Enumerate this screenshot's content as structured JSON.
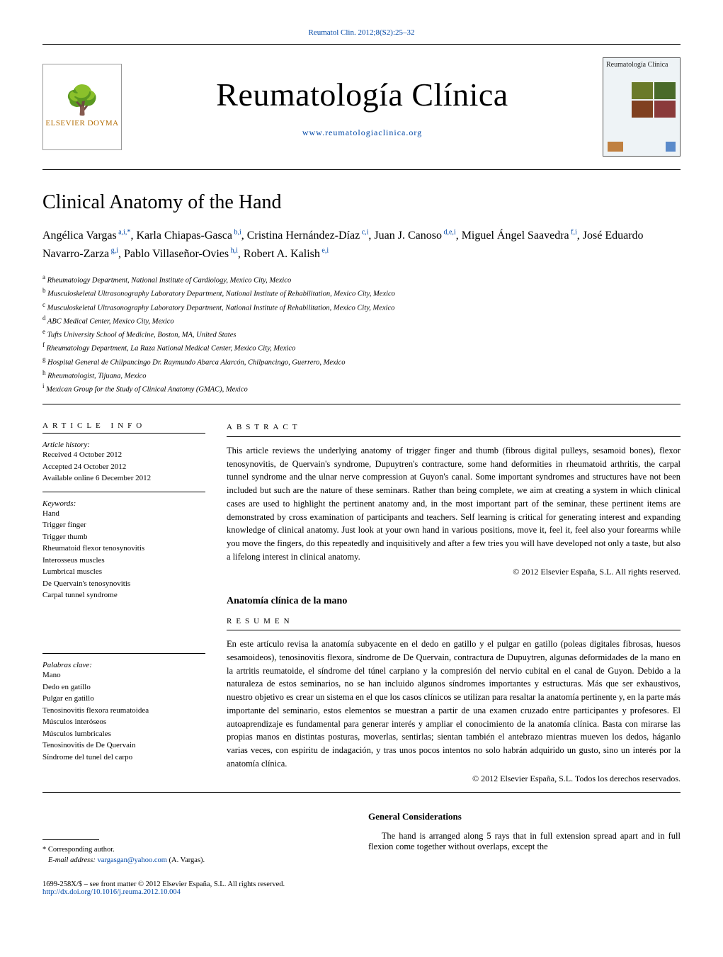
{
  "citation": "Reumatol Clin. 2012;8(S2):25–32",
  "publisher_logo": {
    "name": "ELSEVIER DOYMA"
  },
  "journal": {
    "name_main": "Reumatología",
    "name_sub": " Clínica",
    "url": "www.reumatologiaclinica.org",
    "cover_label": "Reumatología Clínica"
  },
  "article": {
    "title": "Clinical Anatomy of the Hand",
    "authors_html": "Angélica Vargas<sup> a,i,*</sup>,  Karla Chiapas-Gasca<sup> b,i</sup>,  Cristina Hernández-Díaz<sup> c,i</sup>,  Juan J. Canoso<sup> d,e,i</sup>, Miguel Ángel Saavedra<sup> f,i</sup>,  José Eduardo Navarro-Zarza<sup> g,i</sup>,  Pablo Villaseñor-Ovies<sup> h,i</sup>, Robert A. Kalish<sup> e,i</sup>",
    "affiliations": [
      {
        "sup": "a",
        "text": "Rheumatology Department, National Institute of Cardiology, Mexico City, Mexico"
      },
      {
        "sup": "b",
        "text": "Musculoskeletal Ultrasonography Laboratory Department, National Institute of Rehabilitation, Mexico City, Mexico"
      },
      {
        "sup": "c",
        "text": "Musculoskeletal Ultrasonography Laboratory Department, National Institute of Rehabilitation, Mexico City, Mexico"
      },
      {
        "sup": "d",
        "text": "ABC Medical Center, Mexico City, Mexico"
      },
      {
        "sup": "e",
        "text": "Tufts University School of Medicine, Boston, MA, United States"
      },
      {
        "sup": "f",
        "text": "Rheumatology Department, La Raza National Medical Center, Mexico City, Mexico"
      },
      {
        "sup": "g",
        "text": "Hospital General de Chilpancingo Dr. Raymundo Abarca Alarcón, Chilpancingo, Guerrero, Mexico"
      },
      {
        "sup": "h",
        "text": "Rheumatologist, Tijuana, Mexico"
      },
      {
        "sup": "i",
        "text": "Mexican Group for the Study of Clinical Anatomy (GMAC), Mexico"
      }
    ]
  },
  "article_info": {
    "label": "article info",
    "history_label": "Article history:",
    "history": [
      "Received 4 October 2012",
      "Accepted 24 October 2012",
      "Available online 6 December 2012"
    ],
    "keywords_label": "Keywords:",
    "keywords": [
      "Hand",
      "Trigger finger",
      "Trigger thumb",
      "Rheumatoid flexor tenosynovitis",
      "Interosseus muscles",
      "Lumbrical muscles",
      "De Quervain's tenosynovitis",
      "Carpal tunnel syndrome"
    ],
    "palabras_label": "Palabras clave:",
    "palabras": [
      "Mano",
      "Dedo en gatillo",
      "Pulgar en gatillo",
      "Tenosinovitis flexora reumatoidea",
      "Músculos interóseos",
      "Músculos lumbricales",
      "Tenosinovitis de De Quervain",
      "Síndrome del tunel del carpo"
    ]
  },
  "abstract": {
    "label": "abstract",
    "text": "This article reviews the underlying anatomy of trigger finger and thumb (fibrous digital pulleys, sesamoid bones), flexor tenosynovitis, de Quervain's syndrome, Dupuytren's contracture, some hand deformities in rheumatoid arthritis, the carpal tunnel syndrome and the ulnar nerve compression at Guyon's canal. Some important syndromes and structures have not been included but such are the nature of these seminars. Rather than being complete, we aim at creating a system in which clinical cases are used to highlight the pertinent anatomy and, in the most important part of the seminar, these pertinent items are demonstrated by cross examination of participants and teachers. Self learning is critical for generating interest and expanding knowledge of clinical anatomy. Just look at your own hand in various positions, move it, feel it, feel also your forearms while you move the fingers, do this repeatedly and inquisitively and after a few tries you will have developed not only a taste, but also a lifelong interest in clinical anatomy.",
    "copyright": "© 2012 Elsevier España, S.L. All rights reserved."
  },
  "resumen": {
    "title": "Anatomía clínica de la mano",
    "label": "resumen",
    "text": "En este artículo revisa la anatomía subyacente en el dedo en gatillo y el pulgar en gatillo (poleas digitales fibrosas, huesos sesamoideos), tenosinovitis flexora, síndrome de De Quervain, contractura de Dupuytren, algunas deformidades de la mano en la artritis reumatoide, el síndrome del túnel carpiano y la compresión del nervio cubital en el canal de Guyon. Debido a la naturaleza de estos seminarios, no se han incluido algunos síndromes importantes y estructuras. Más que ser exhaustivos, nuestro objetivo es crear un sistema en el que los casos clínicos se utilizan para resaltar la anatomía pertinente y, en la parte más importante del seminario, estos elementos se muestran a partir de una examen cruzado entre participantes y profesores. El autoaprendizaje es fundamental para generar interés y ampliar el conocimiento de la anatomía clínica. Basta con mirarse las propias manos en distintas posturas, moverlas, sentirlas; sientan también el antebrazo mientras mueven los dedos, háganlo varias veces, con espiritu de indagación, y tras unos pocos intentos no solo habrán adquirido un gusto, sino un interés por la anatomía clínica.",
    "copyright": "© 2012 Elsevier España, S.L. Todos los derechos reservados."
  },
  "body": {
    "section_title": "General Considerations",
    "para": "The hand is arranged along 5 rays that in full extension spread apart and in full flexion come together without overlaps, except the"
  },
  "footnote": {
    "corr_label": "* Corresponding author.",
    "email_label": "E-mail address:",
    "email": "vargasgan@yahoo.com",
    "email_who": "(A. Vargas)."
  },
  "doi": {
    "front_matter": "1699-258X/$ – see front matter © 2012 Elsevier España, S.L. All rights reserved.",
    "url": "http://dx.doi.org/10.1016/j.reuma.2012.10.004"
  }
}
